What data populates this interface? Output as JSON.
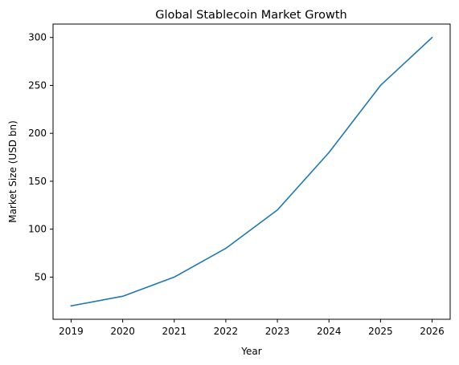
{
  "chart_data": {
    "type": "line",
    "title": "Global Stablecoin Market Growth",
    "xlabel": "Year",
    "ylabel": "Market Size (USD bn)",
    "x": [
      2019,
      2020,
      2021,
      2022,
      2023,
      2024,
      2025,
      2026
    ],
    "series": [
      {
        "values": [
          20,
          30,
          50,
          80,
          120,
          180,
          250,
          300
        ],
        "color": "#1f77b4"
      }
    ],
    "xlim": [
      2018.65,
      2026.35
    ],
    "ylim": [
      6,
      314
    ],
    "xticks": [
      2019,
      2020,
      2021,
      2022,
      2023,
      2024,
      2025,
      2026
    ],
    "yticks": [
      50,
      100,
      150,
      200,
      250,
      300
    ],
    "grid": false,
    "legend": "none"
  }
}
